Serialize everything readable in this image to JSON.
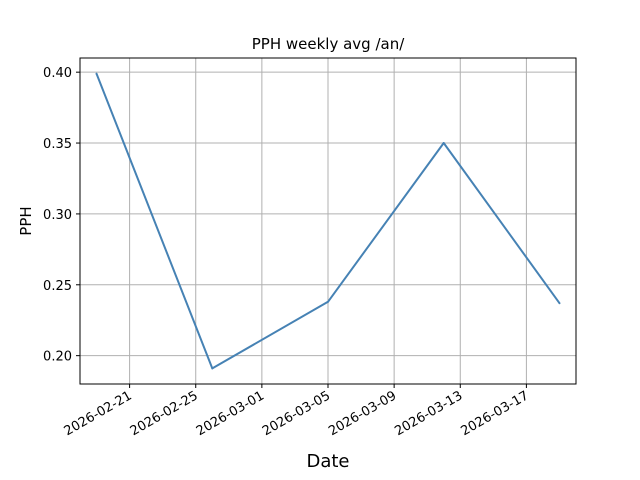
{
  "chart_data": {
    "type": "line",
    "title": "PPH weekly avg /an/",
    "xlabel": "Date",
    "ylabel": "PPH",
    "x": [
      "2026-02-19",
      "2026-02-26",
      "2026-03-05",
      "2026-03-12",
      "2026-03-19"
    ],
    "series": [
      {
        "values": [
          0.399,
          0.191,
          0.238,
          0.35,
          0.237
        ],
        "color": "#4682b4"
      }
    ],
    "xlim": [
      "2026-02-18",
      "2026-03-20"
    ],
    "ylim": [
      0.18,
      0.41
    ],
    "xticks": [
      "2026-02-21",
      "2026-02-25",
      "2026-03-01",
      "2026-03-05",
      "2026-03-09",
      "2026-03-13",
      "2026-03-17"
    ],
    "yticks": [
      "0.20",
      "0.25",
      "0.30",
      "0.35",
      "0.40"
    ],
    "grid": true,
    "legend": "none"
  }
}
